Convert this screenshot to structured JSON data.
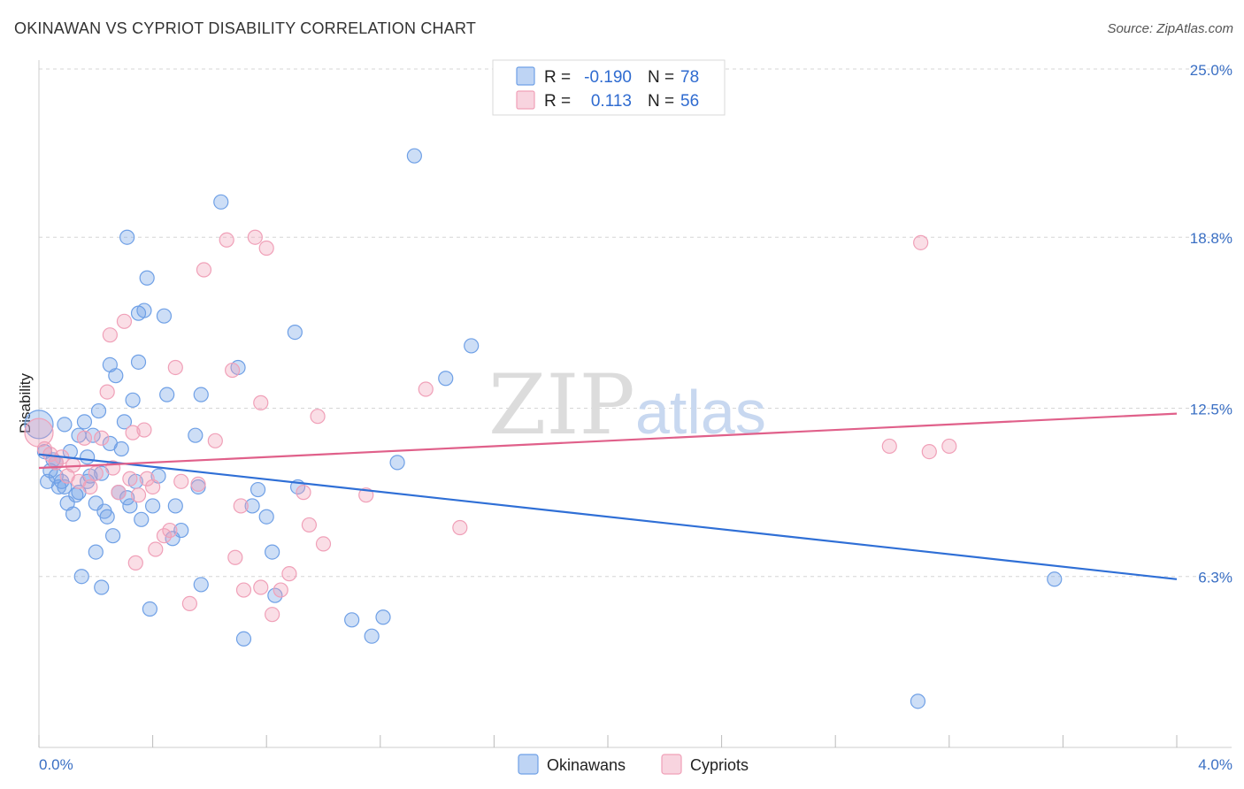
{
  "header": {
    "title": "OKINAWAN VS CYPRIOT DISABILITY CORRELATION CHART",
    "source": "Source: ZipAtlas.com"
  },
  "watermark": {
    "part1": "ZIP",
    "part2": "atlas"
  },
  "legend": {
    "rows": [
      {
        "r_label": "R =",
        "r_value": "-0.190",
        "n_label": "N =",
        "n_value": "78",
        "color": "#6fa0e6"
      },
      {
        "r_label": "R =",
        "r_value": "0.113",
        "n_label": "N =",
        "n_value": "56",
        "color": "#f0a0b8"
      }
    ]
  },
  "chart_data": {
    "type": "scatter",
    "title": "OKINAWAN VS CYPRIOT DISABILITY CORRELATION CHART",
    "xlabel": "",
    "ylabel": "Disability",
    "xlim": [
      0.0,
      4.0
    ],
    "ylim": [
      0.0,
      25.0
    ],
    "x_tick_labels": [
      "0.0%",
      "4.0%"
    ],
    "y_ticks": [
      6.3,
      12.5,
      18.8,
      25.0
    ],
    "y_tick_labels": [
      "6.3%",
      "12.5%",
      "18.8%",
      "25.0%"
    ],
    "grid": true,
    "legend_position": "top-center",
    "series": [
      {
        "name": "Okinawans",
        "color": "#6fa0e6",
        "line_color": "#2f6fd6",
        "trend": {
          "x": [
            0.0,
            4.0
          ],
          "y": [
            10.8,
            6.2
          ]
        },
        "points": [
          [
            0.0,
            11.9
          ],
          [
            0.02,
            10.9
          ],
          [
            0.03,
            9.8
          ],
          [
            0.04,
            10.2
          ],
          [
            0.05,
            10.6
          ],
          [
            0.06,
            10.5
          ],
          [
            0.07,
            9.6
          ],
          [
            0.08,
            9.8
          ],
          [
            0.09,
            11.9
          ],
          [
            0.1,
            9.0
          ],
          [
            0.11,
            10.9
          ],
          [
            0.12,
            8.6
          ],
          [
            0.13,
            9.3
          ],
          [
            0.14,
            11.5
          ],
          [
            0.15,
            6.3
          ],
          [
            0.16,
            12.0
          ],
          [
            0.17,
            9.8
          ],
          [
            0.18,
            10.0
          ],
          [
            0.19,
            11.5
          ],
          [
            0.2,
            9.0
          ],
          [
            0.2,
            7.2
          ],
          [
            0.21,
            12.4
          ],
          [
            0.22,
            5.9
          ],
          [
            0.22,
            10.1
          ],
          [
            0.23,
            8.7
          ],
          [
            0.24,
            8.5
          ],
          [
            0.25,
            14.1
          ],
          [
            0.26,
            7.8
          ],
          [
            0.27,
            13.7
          ],
          [
            0.28,
            9.4
          ],
          [
            0.29,
            11.0
          ],
          [
            0.3,
            12.0
          ],
          [
            0.31,
            9.2
          ],
          [
            0.31,
            18.8
          ],
          [
            0.32,
            8.9
          ],
          [
            0.33,
            12.8
          ],
          [
            0.34,
            9.8
          ],
          [
            0.35,
            14.2
          ],
          [
            0.35,
            16.0
          ],
          [
            0.36,
            8.4
          ],
          [
            0.37,
            16.1
          ],
          [
            0.38,
            17.3
          ],
          [
            0.39,
            5.1
          ],
          [
            0.4,
            8.9
          ],
          [
            0.42,
            10.0
          ],
          [
            0.44,
            15.9
          ],
          [
            0.45,
            13.0
          ],
          [
            0.47,
            7.7
          ],
          [
            0.48,
            8.9
          ],
          [
            0.5,
            8.0
          ],
          [
            0.55,
            11.5
          ],
          [
            0.56,
            9.6
          ],
          [
            0.57,
            13.0
          ],
          [
            0.57,
            6.0
          ],
          [
            0.64,
            20.1
          ],
          [
            0.7,
            14.0
          ],
          [
            0.72,
            4.0
          ],
          [
            0.75,
            8.9
          ],
          [
            0.77,
            9.5
          ],
          [
            0.8,
            8.5
          ],
          [
            0.82,
            7.2
          ],
          [
            0.83,
            5.6
          ],
          [
            0.9,
            15.3
          ],
          [
            0.91,
            9.6
          ],
          [
            1.1,
            4.7
          ],
          [
            1.17,
            4.1
          ],
          [
            1.21,
            4.8
          ],
          [
            1.26,
            10.5
          ],
          [
            1.32,
            21.8
          ],
          [
            1.43,
            13.6
          ],
          [
            1.52,
            14.8
          ],
          [
            3.09,
            1.7
          ],
          [
            3.57,
            6.2
          ],
          [
            0.06,
            10.0
          ],
          [
            0.09,
            9.6
          ],
          [
            0.14,
            9.4
          ],
          [
            0.17,
            10.7
          ],
          [
            0.25,
            11.2
          ]
        ]
      },
      {
        "name": "Cypriots",
        "color": "#f0a0b8",
        "line_color": "#e0608a",
        "trend": {
          "x": [
            0.0,
            4.0
          ],
          "y": [
            10.3,
            12.3
          ]
        },
        "points": [
          [
            0.0,
            11.6
          ],
          [
            0.02,
            11.0
          ],
          [
            0.04,
            10.8
          ],
          [
            0.06,
            10.5
          ],
          [
            0.08,
            10.7
          ],
          [
            0.1,
            10.0
          ],
          [
            0.12,
            10.4
          ],
          [
            0.14,
            9.8
          ],
          [
            0.16,
            11.4
          ],
          [
            0.18,
            9.6
          ],
          [
            0.2,
            10.1
          ],
          [
            0.22,
            11.4
          ],
          [
            0.24,
            13.1
          ],
          [
            0.25,
            15.2
          ],
          [
            0.26,
            10.3
          ],
          [
            0.28,
            9.4
          ],
          [
            0.3,
            15.7
          ],
          [
            0.32,
            9.9
          ],
          [
            0.33,
            11.6
          ],
          [
            0.34,
            6.8
          ],
          [
            0.35,
            9.3
          ],
          [
            0.37,
            11.7
          ],
          [
            0.38,
            9.9
          ],
          [
            0.4,
            9.6
          ],
          [
            0.41,
            7.3
          ],
          [
            0.44,
            7.8
          ],
          [
            0.46,
            8.0
          ],
          [
            0.48,
            14.0
          ],
          [
            0.5,
            9.8
          ],
          [
            0.53,
            5.3
          ],
          [
            0.56,
            9.7
          ],
          [
            0.58,
            17.6
          ],
          [
            0.62,
            11.3
          ],
          [
            0.66,
            18.7
          ],
          [
            0.68,
            13.9
          ],
          [
            0.69,
            7.0
          ],
          [
            0.71,
            8.9
          ],
          [
            0.72,
            5.8
          ],
          [
            0.76,
            18.8
          ],
          [
            0.78,
            12.7
          ],
          [
            0.78,
            5.9
          ],
          [
            0.8,
            18.4
          ],
          [
            0.82,
            4.9
          ],
          [
            0.85,
            5.8
          ],
          [
            0.88,
            6.4
          ],
          [
            0.93,
            9.4
          ],
          [
            0.95,
            8.2
          ],
          [
            0.98,
            12.2
          ],
          [
            1.0,
            7.5
          ],
          [
            1.15,
            9.3
          ],
          [
            1.36,
            13.2
          ],
          [
            1.48,
            8.1
          ],
          [
            2.99,
            11.1
          ],
          [
            3.1,
            18.6
          ],
          [
            3.13,
            10.9
          ],
          [
            3.2,
            11.1
          ]
        ]
      }
    ]
  }
}
